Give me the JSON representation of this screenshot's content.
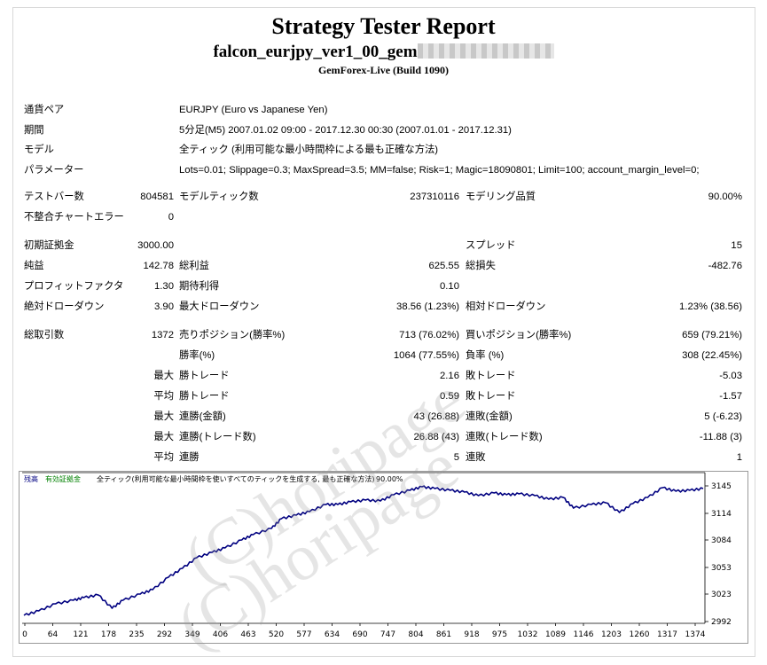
{
  "header": {
    "title": "Strategy Tester Report",
    "ea_name": "falcon_eurjpy_ver1_00_gem",
    "build": "GemForex-Live (Build 1090)"
  },
  "settings": [
    {
      "label": "通貨ペア",
      "value": "EURJPY (Euro vs Japanese Yen)"
    },
    {
      "label": "期間",
      "value": "5分足(M5) 2007.01.02 09:00 - 2017.12.30 00:30 (2007.01.01 - 2017.12.31)"
    },
    {
      "label": "モデル",
      "value": "全ティック (利用可能な最小時間枠による最も正確な方法)"
    },
    {
      "label": "パラメーター",
      "value": "Lots=0.01; Slippage=0.3; MaxSpread=3.5; MM=false; Risk=1; Magic=18090801; Limit=100; account_margin_level=0;"
    }
  ],
  "stats": {
    "bars_label": "テストバー数",
    "bars": "804581",
    "ticks_label": "モデルティック数",
    "ticks": "237310116",
    "quality_label": "モデリング品質",
    "quality": "90.00%",
    "errors_label": "不整合チャートエラー",
    "errors": "0",
    "deposit_label": "初期証拠金",
    "deposit": "3000.00",
    "spread_label": "スプレッド",
    "spread": "15",
    "net_label": "純益",
    "net": "142.78",
    "gross_profit_label": "総利益",
    "gross_profit": "625.55",
    "gross_loss_label": "総損失",
    "gross_loss": "-482.76",
    "pf_label": "プロフィットファクタ",
    "pf": "1.30",
    "expected_label": "期待利得",
    "expected": "0.10",
    "abs_dd_label": "絶対ドローダウン",
    "abs_dd": "3.90",
    "max_dd_label": "最大ドローダウン",
    "max_dd": "38.56 (1.23%)",
    "rel_dd_label": "相対ドローダウン",
    "rel_dd": "1.23% (38.56)",
    "trades_label": "総取引数",
    "trades": "1372",
    "short_label": "売りポジション(勝率%)",
    "short": "713 (76.02%)",
    "long_label": "買いポジション(勝率%)",
    "long": "659 (79.21%)",
    "win_label": "勝率(%)",
    "win": "1064 (77.55%)",
    "loss_label": "負率 (%)",
    "loss": "308 (22.45%)",
    "max_word": "最大",
    "avg_word": "平均",
    "max_win_label": "勝トレード",
    "max_win": "2.16",
    "max_loss_label": "敗トレード",
    "max_loss": "-5.03",
    "avg_win_label": "勝トレード",
    "avg_win": "0.59",
    "avg_loss_label": "敗トレード",
    "avg_loss": "-1.57",
    "cw_amt_label": "連勝(金額)",
    "cw_amt": "43 (26.88)",
    "cl_amt_label": "連敗(金額)",
    "cl_amt": "5 (-6.23)",
    "cw_trades_label": "連勝(トレード数)",
    "cw_trades": "26.88 (43)",
    "cl_trades_label": "連敗(トレード数)",
    "cl_trades": "-11.88 (3)",
    "avg_cw_label": "連勝",
    "avg_cw": "5",
    "avg_cl_label": "連敗",
    "avg_cl": "1"
  },
  "watermark": "(C)horipage",
  "chart_data": {
    "type": "line",
    "legend": [
      "残高",
      "有効証拠金",
      "全ティック(利用可能な最小時間枠を使いすべてのティックを生成する, 最も正確な方法)",
      "90.00%"
    ],
    "line_color": "#000080",
    "x_ticks": [
      "0",
      "64",
      "121",
      "178",
      "235",
      "292",
      "349",
      "406",
      "463",
      "520",
      "577",
      "634",
      "690",
      "747",
      "804",
      "861",
      "918",
      "975",
      "1032",
      "1089",
      "1146",
      "1203",
      "1260",
      "1317",
      "1374"
    ],
    "y_ticks": [
      "3145",
      "3114",
      "3084",
      "3053",
      "3023",
      "2992"
    ],
    "y_tick_values": [
      3145,
      3114,
      3084,
      3053,
      3023,
      2992
    ],
    "xlim": [
      0,
      1372
    ],
    "ylim": [
      2992,
      3150
    ],
    "x": [
      0,
      30,
      64,
      100,
      121,
      150,
      178,
      200,
      235,
      260,
      292,
      320,
      349,
      380,
      406,
      440,
      463,
      500,
      520,
      550,
      577,
      610,
      634,
      660,
      690,
      720,
      747,
      780,
      804,
      830,
      861,
      890,
      918,
      950,
      975,
      1000,
      1032,
      1060,
      1089,
      1110,
      1146,
      1175,
      1203,
      1230,
      1260,
      1290,
      1317,
      1345,
      1372
    ],
    "y": [
      2999,
      3004,
      3012,
      3016,
      3019,
      3022,
      3007,
      3016,
      3023,
      3028,
      3042,
      3052,
      3064,
      3070,
      3075,
      3084,
      3090,
      3097,
      3108,
      3112,
      3116,
      3124,
      3124,
      3127,
      3129,
      3128,
      3135,
      3140,
      3144,
      3142,
      3140,
      3138,
      3134,
      3137,
      3135,
      3136,
      3134,
      3130,
      3132,
      3120,
      3124,
      3126,
      3115,
      3125,
      3132,
      3143,
      3139,
      3140,
      3142
    ]
  }
}
